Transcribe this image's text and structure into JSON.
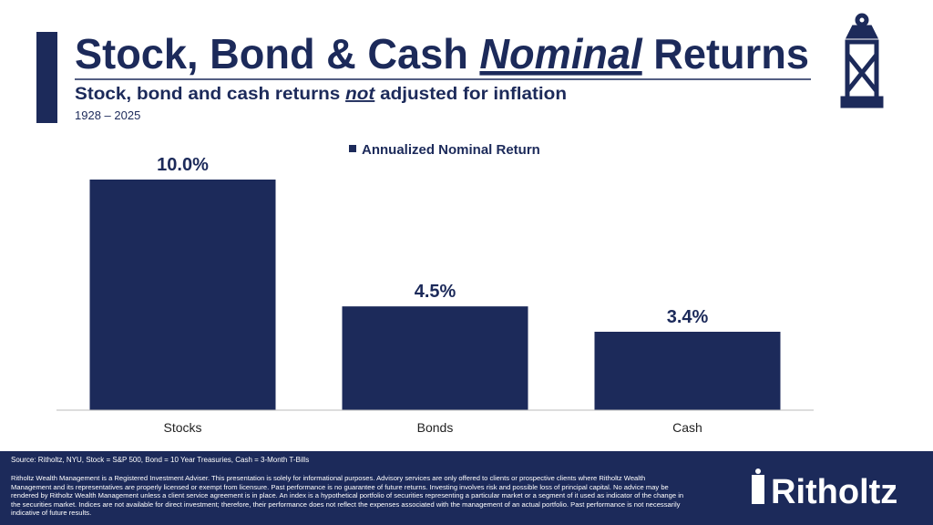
{
  "chart_data": {
    "type": "bar",
    "title": [
      "Stock, Bond & Cash ",
      "Nominal",
      " Returns"
    ],
    "subtitle": [
      "Stock, bond and cash returns ",
      "not",
      " adjusted for inflation"
    ],
    "date_range": "1928 – 2025",
    "categories": [
      "Stocks",
      "Bonds",
      "Cash"
    ],
    "series": [
      {
        "name": "Annualized Nominal Return",
        "color": "#1c2a5a",
        "values": [
          10.0,
          4.5,
          3.4
        ],
        "value_labels": [
          "10.0%",
          "4.5%",
          "3.4%"
        ]
      }
    ]
  },
  "footer": {
    "source": "Source: Ritholtz, NYU, Stock = S&P 500, Bond = 10 Year Treasuries, Cash = 3-Month T-Bills",
    "disclaimer": "Ritholtz Wealth Management is a Registered Investment Adviser. This presentation is solely for informational purposes. Advisory services are only offered to clients or prospective clients where Ritholtz Wealth Management and its representatives are properly licensed or exempt from licensure. Past performance is no guarantee of future returns. Investing involves risk and possible loss of principal capital. No advice may be rendered by Ritholtz Wealth Management unless a client service agreement is in place. An index is a hypothetical portfolio of securities representing a particular market or a segment of it used as indicator of the change in the securities market. Indices are not available for direct investment; therefore, their performance does not reflect the expenses associated with the management of an actual portfolio. Past performance is not necessarily indicative of future results.",
    "logo": "Ritholtz"
  }
}
